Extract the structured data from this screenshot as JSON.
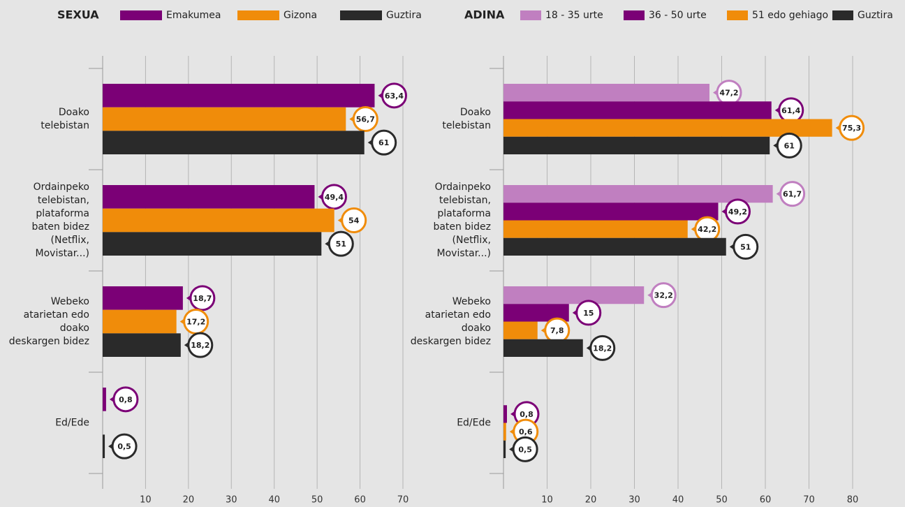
{
  "chart_data": [
    {
      "type": "barh",
      "legend_title": "SEXUA",
      "categories": [
        "Doako\ntelebistan",
        "Ordainpeko\ntelebistan,\nplataforma\nbaten bidez\n(Netflix,\nMovistar...)",
        "Webeko\natarietan edo\ndoako\ndeskargen bidez",
        "Ed/Ede"
      ],
      "series": [
        {
          "name": "Emakumea",
          "color": "#7b0076",
          "values": [
            63.4,
            49.4,
            18.7,
            0.8
          ],
          "value_labels": [
            "63,4",
            "49,4",
            "18,7",
            "0,8"
          ]
        },
        {
          "name": "Gizona",
          "color": "#f08c0a",
          "values": [
            56.7,
            54,
            17.2,
            null
          ],
          "value_labels": [
            "56,7",
            "54",
            "17,2",
            null
          ]
        },
        {
          "name": "Guztira",
          "color": "#2a2a2a",
          "values": [
            61,
            51,
            18.2,
            0.5
          ],
          "value_labels": [
            "61",
            "51",
            "18,2",
            "0,5"
          ]
        }
      ],
      "xlim": [
        0,
        70
      ],
      "xticks": [
        10,
        20,
        30,
        40,
        50,
        60,
        70
      ],
      "grid": true
    },
    {
      "type": "barh",
      "legend_title": "ADINA",
      "categories": [
        "Doako\ntelebistan",
        "Ordainpeko\ntelebistan,\nplataforma\nbaten bidez\n(Netflix,\nMovistar...)",
        "Webeko\natarietan edo\ndoako\ndeskargen bidez",
        "Ed/Ede"
      ],
      "series": [
        {
          "name": "18 - 35 urte",
          "color": "#c07fc0",
          "values": [
            47.2,
            61.7,
            32.2,
            null
          ],
          "value_labels": [
            "47,2",
            "61,7",
            "32,2",
            null
          ]
        },
        {
          "name": "36 - 50 urte",
          "color": "#7b0076",
          "values": [
            61.4,
            49.2,
            15,
            0.8
          ],
          "value_labels": [
            "61,4",
            "49,2",
            "15",
            "0,8"
          ]
        },
        {
          "name": "51 edo gehiago",
          "color": "#f08c0a",
          "values": [
            75.3,
            42.2,
            7.8,
            0.6
          ],
          "value_labels": [
            "75,3",
            "42,2",
            "7,8",
            "0,6"
          ]
        },
        {
          "name": "Guztira",
          "color": "#2a2a2a",
          "values": [
            61,
            51,
            18.2,
            0.5
          ],
          "value_labels": [
            "61",
            "51",
            "18,2",
            "0,5"
          ]
        }
      ],
      "xlim": [
        0,
        80
      ],
      "xticks": [
        10,
        20,
        30,
        40,
        50,
        60,
        70,
        80
      ],
      "grid": true
    }
  ]
}
